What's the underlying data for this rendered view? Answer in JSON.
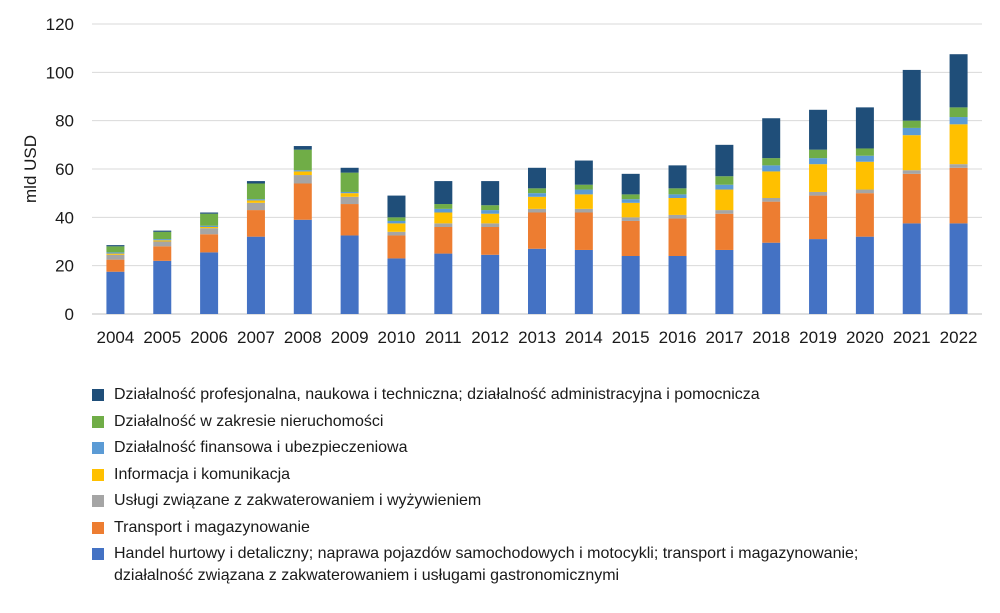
{
  "chart_data": {
    "type": "stacked-bar",
    "ylabel": "mld USD",
    "ylim": [
      0,
      120
    ],
    "yticks": [
      0,
      20,
      40,
      60,
      80,
      100,
      120
    ],
    "grid": true,
    "categories": [
      "2004",
      "2005",
      "2006",
      "2007",
      "2008",
      "2009",
      "2010",
      "2011",
      "2012",
      "2013",
      "2014",
      "2015",
      "2016",
      "2017",
      "2018",
      "2019",
      "2020",
      "2021",
      "2022"
    ],
    "series": [
      {
        "name": "Handel hurtowy i detaliczny; naprawa pojazdów samochodowych i motocykli; transport i magazynowanie; działalność związana z zakwaterowaniem i usługami gastronomicznymi",
        "color": "#4472C4",
        "values": [
          17.5,
          22,
          25.5,
          32,
          39,
          32.5,
          23,
          25,
          24.5,
          27,
          26.5,
          24,
          24,
          26.5,
          29.5,
          31,
          32,
          37.5,
          37.5
        ]
      },
      {
        "name": "Transport i magazynowanie",
        "color": "#ED7D31",
        "values": [
          5,
          6,
          7.5,
          11,
          15,
          13,
          9.5,
          11,
          11.5,
          15,
          15.5,
          14.5,
          15.5,
          15,
          17,
          18,
          18,
          20.5,
          23
        ]
      },
      {
        "name": "Usługi związane z zakwaterowaniem i wyżywieniem",
        "color": "#A5A5A5",
        "values": [
          2,
          2,
          2.5,
          3,
          3.5,
          3,
          1.5,
          1.5,
          1.5,
          1.5,
          1.5,
          1.5,
          1.5,
          1.5,
          1.5,
          1.5,
          1.5,
          1.5,
          1.5
        ]
      },
      {
        "name": "Informacja i komunikacja",
        "color": "#FFC000",
        "values": [
          0.5,
          0.5,
          0.5,
          1,
          1.5,
          1.5,
          3.5,
          4.5,
          4,
          5,
          6,
          6,
          7,
          8.5,
          11,
          11.5,
          11.5,
          14.5,
          16.5
        ]
      },
      {
        "name": "Działalność finansowa i ubezpieczeniowa",
        "color": "#5B9BD5",
        "values": [
          0.5,
          0.5,
          0.5,
          0.5,
          0.5,
          0.5,
          1,
          1.5,
          1.5,
          1.5,
          2,
          1.5,
          1.5,
          2,
          2.5,
          2.5,
          2.5,
          3,
          3
        ]
      },
      {
        "name": "Działalność w zakresie nieruchomości",
        "color": "#70AD47",
        "values": [
          2.5,
          3,
          5,
          6.5,
          8.5,
          8,
          1.5,
          2,
          2,
          2,
          2,
          2,
          2.5,
          3.5,
          3,
          3.5,
          3,
          3,
          4
        ]
      },
      {
        "name": "Działalność profesjonalna, naukowa i techniczna; działalność administracyjna i pomocnicza",
        "color": "#1F4E79",
        "values": [
          0.5,
          0.5,
          0.5,
          1,
          1.5,
          2,
          9,
          9.5,
          10,
          8.5,
          10,
          8.5,
          9.5,
          13,
          16.5,
          16.5,
          17,
          21,
          22
        ]
      }
    ],
    "legend": {
      "placement": "bottom-left",
      "order": [
        6,
        5,
        4,
        3,
        2,
        1,
        0
      ],
      "items": [
        {
          "color": "#1F4E79",
          "lines": [
            "Działalność profesjonalna, naukowa i techniczna; działalność administracyjna i pomocnicza"
          ]
        },
        {
          "color": "#70AD47",
          "lines": [
            "Działalność w zakresie nieruchomości"
          ]
        },
        {
          "color": "#5B9BD5",
          "lines": [
            "Działalność finansowa i ubezpieczeniowa"
          ]
        },
        {
          "color": "#FFC000",
          "lines": [
            "Informacja i komunikacja"
          ]
        },
        {
          "color": "#A5A5A5",
          "lines": [
            "Usługi związane z zakwaterowaniem i wyżywieniem"
          ]
        },
        {
          "color": "#ED7D31",
          "lines": [
            "Transport i magazynowanie"
          ]
        },
        {
          "color": "#4472C4",
          "lines": [
            "Handel hurtowy i detaliczny; naprawa pojazdów samochodowych i motocykli; transport i magazynowanie;",
            "działalność związana z zakwaterowaniem i usługami gastronomicznymi"
          ]
        }
      ]
    }
  },
  "colors": {
    "gridline": "#D9D9D9",
    "axis": "#BFBFBF",
    "text": "#1a1a1a"
  }
}
